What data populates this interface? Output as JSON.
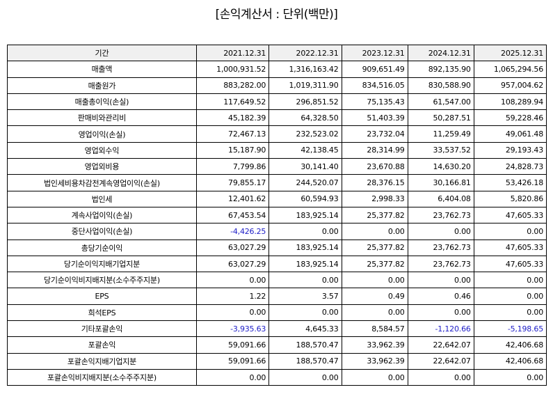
{
  "title": "[손익계산서 : 단위(백만)]",
  "colors": {
    "negative": "#2020c8",
    "header_bg": "#f0f0f0",
    "border": "#000000"
  },
  "table": {
    "header": {
      "label": "기간",
      "years": [
        "2021.12.31",
        "2022.12.31",
        "2023.12.31",
        "2024.12.31",
        "2025.12.31"
      ]
    },
    "rows": [
      {
        "label": "매출액",
        "values": [
          "1,000,931.52",
          "1,316,163.42",
          "909,651.49",
          "892,135.90",
          "1,065,294.56"
        ]
      },
      {
        "label": "매출원가",
        "values": [
          "883,282.00",
          "1,019,311.90",
          "834,516.05",
          "830,588.90",
          "957,004.62"
        ]
      },
      {
        "label": "매출총이익(손실)",
        "values": [
          "117,649.52",
          "296,851.52",
          "75,135.43",
          "61,547.00",
          "108,289.94"
        ]
      },
      {
        "label": "판매비와관리비",
        "values": [
          "45,182.39",
          "64,328.50",
          "51,403.39",
          "50,287.51",
          "59,228.46"
        ]
      },
      {
        "label": "영업이익(손실)",
        "values": [
          "72,467.13",
          "232,523.02",
          "23,732.04",
          "11,259.49",
          "49,061.48"
        ]
      },
      {
        "label": "영업외수익",
        "values": [
          "15,187.90",
          "42,138.45",
          "28,314.99",
          "33,537.52",
          "29,193.43"
        ]
      },
      {
        "label": "영업외비용",
        "values": [
          "7,799.86",
          "30,141.40",
          "23,670.88",
          "14,630.20",
          "24,828.73"
        ]
      },
      {
        "label": "법인세비용차감전계속영업이익(손실)",
        "values": [
          "79,855.17",
          "244,520.07",
          "28,376.15",
          "30,166.81",
          "53,426.18"
        ]
      },
      {
        "label": "법인세",
        "values": [
          "12,401.62",
          "60,594.93",
          "2,998.33",
          "6,404.08",
          "5,820.86"
        ]
      },
      {
        "label": "계속사업이익(손실)",
        "values": [
          "67,453.54",
          "183,925.14",
          "25,377.82",
          "23,762.73",
          "47,605.33"
        ]
      },
      {
        "label": "중단사업이익(손실)",
        "values": [
          "-4,426.25",
          "0.00",
          "0.00",
          "0.00",
          "0.00"
        ]
      },
      {
        "label": "총당기순이익",
        "values": [
          "63,027.29",
          "183,925.14",
          "25,377.82",
          "23,762.73",
          "47,605.33"
        ]
      },
      {
        "label": "당기순이익지배기업지분",
        "values": [
          "63,027.29",
          "183,925.14",
          "25,377.82",
          "23,762.73",
          "47,605.33"
        ]
      },
      {
        "label": "당기순이익비지배지분(소수주주지분)",
        "values": [
          "0.00",
          "0.00",
          "0.00",
          "0.00",
          "0.00"
        ]
      },
      {
        "label": "EPS",
        "values": [
          "1.22",
          "3.57",
          "0.49",
          "0.46",
          "0.00"
        ]
      },
      {
        "label": "희석EPS",
        "values": [
          "0.00",
          "0.00",
          "0.00",
          "0.00",
          "0.00"
        ]
      },
      {
        "label": "기타포괄손익",
        "values": [
          "-3,935.63",
          "4,645.33",
          "8,584.57",
          "-1,120.66",
          "-5,198.65"
        ]
      },
      {
        "label": "포괄손익",
        "values": [
          "59,091.66",
          "188,570.47",
          "33,962.39",
          "22,642.07",
          "42,406.68"
        ]
      },
      {
        "label": "포괄손익지배기업지분",
        "values": [
          "59,091.66",
          "188,570.47",
          "33,962.39",
          "22,642.07",
          "42,406.68"
        ]
      },
      {
        "label": "포괄손익비지배지분(소수주주지분)",
        "values": [
          "0.00",
          "0.00",
          "0.00",
          "0.00",
          "0.00"
        ]
      }
    ]
  }
}
